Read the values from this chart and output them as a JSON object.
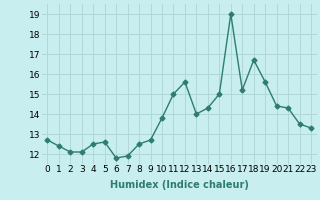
{
  "x": [
    0,
    1,
    2,
    3,
    4,
    5,
    6,
    7,
    8,
    9,
    10,
    11,
    12,
    13,
    14,
    15,
    16,
    17,
    18,
    19,
    20,
    21,
    22,
    23
  ],
  "y": [
    12.7,
    12.4,
    12.1,
    12.1,
    12.5,
    12.6,
    11.8,
    11.9,
    12.5,
    12.7,
    13.8,
    15.0,
    15.6,
    14.0,
    14.3,
    15.0,
    19.0,
    15.2,
    16.7,
    15.6,
    14.4,
    14.3,
    13.5,
    13.3
  ],
  "line_color": "#2e7d6e",
  "bg_color": "#c8eef0",
  "grid_color": "#b0d8d8",
  "xlabel": "Humidex (Indice chaleur)",
  "ylim": [
    11.5,
    19.5
  ],
  "xlim": [
    -0.5,
    23.5
  ],
  "yticks": [
    12,
    13,
    14,
    15,
    16,
    17,
    18,
    19
  ],
  "xtick_labels": [
    "0",
    "1",
    "2",
    "3",
    "4",
    "5",
    "6",
    "7",
    "8",
    "9",
    "10",
    "11",
    "12",
    "13",
    "14",
    "15",
    "16",
    "17",
    "18",
    "19",
    "20",
    "21",
    "22",
    "23"
  ],
  "xlabel_fontsize": 7,
  "tick_fontsize": 6.5,
  "marker": "D",
  "marker_size": 2.5,
  "line_width": 1.0
}
